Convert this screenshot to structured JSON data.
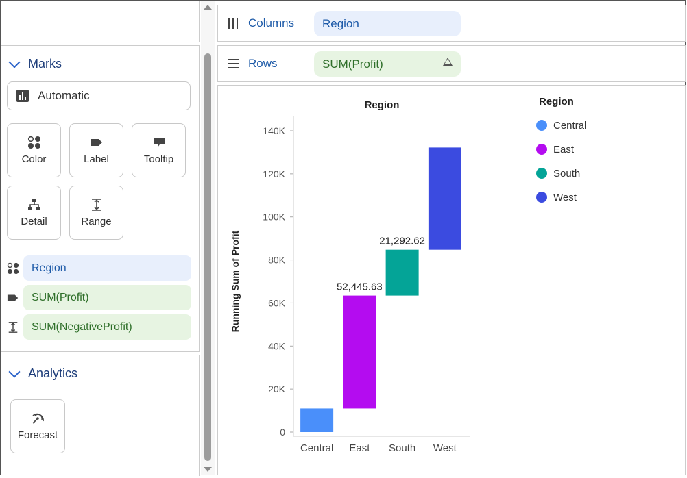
{
  "marks": {
    "title": "Marks",
    "mark_type": "Automatic",
    "cards": [
      "Color",
      "Label",
      "Tooltip",
      "Detail",
      "Range"
    ],
    "encodings": [
      {
        "icon": "color-dots-icon",
        "field": "Region",
        "style": "blue"
      },
      {
        "icon": "label-tag-icon",
        "field": "SUM(Profit)",
        "style": "green"
      },
      {
        "icon": "range-icon",
        "field": "SUM(NegativeProfit)",
        "style": "green"
      }
    ]
  },
  "analytics": {
    "title": "Analytics",
    "cards": [
      "Forecast"
    ]
  },
  "shelves": {
    "columns": {
      "label": "Columns",
      "field": "Region"
    },
    "rows": {
      "label": "Rows",
      "field": "SUM(Profit)"
    }
  },
  "legend": {
    "title": "Region",
    "items": [
      {
        "label": "Central",
        "color": "#4a8ffa"
      },
      {
        "label": "East",
        "color": "#b40cf0"
      },
      {
        "label": "South",
        "color": "#04a497"
      },
      {
        "label": "West",
        "color": "#3b4be0"
      }
    ]
  },
  "chart_data": {
    "type": "bar",
    "subtype": "waterfall",
    "title": "Region",
    "ylabel": "Running Sum of Profit",
    "xlabel": "",
    "categories": [
      "Central",
      "East",
      "South",
      "West"
    ],
    "values": [
      11000,
      52445.63,
      21292.62,
      47500
    ],
    "running_start": [
      0,
      11000,
      63445.63,
      84738.25
    ],
    "running_end": [
      11000,
      63445.63,
      84738.25,
      132238.25
    ],
    "data_labels": [
      "",
      "52,445.63",
      "21,292.62",
      ""
    ],
    "ylim": [
      0,
      140000
    ],
    "yticks": [
      "0",
      "20K",
      "40K",
      "60K",
      "80K",
      "100K",
      "120K",
      "140K"
    ],
    "colors": [
      "#4a8ffa",
      "#b40cf0",
      "#04a497",
      "#3b4be0"
    ]
  }
}
